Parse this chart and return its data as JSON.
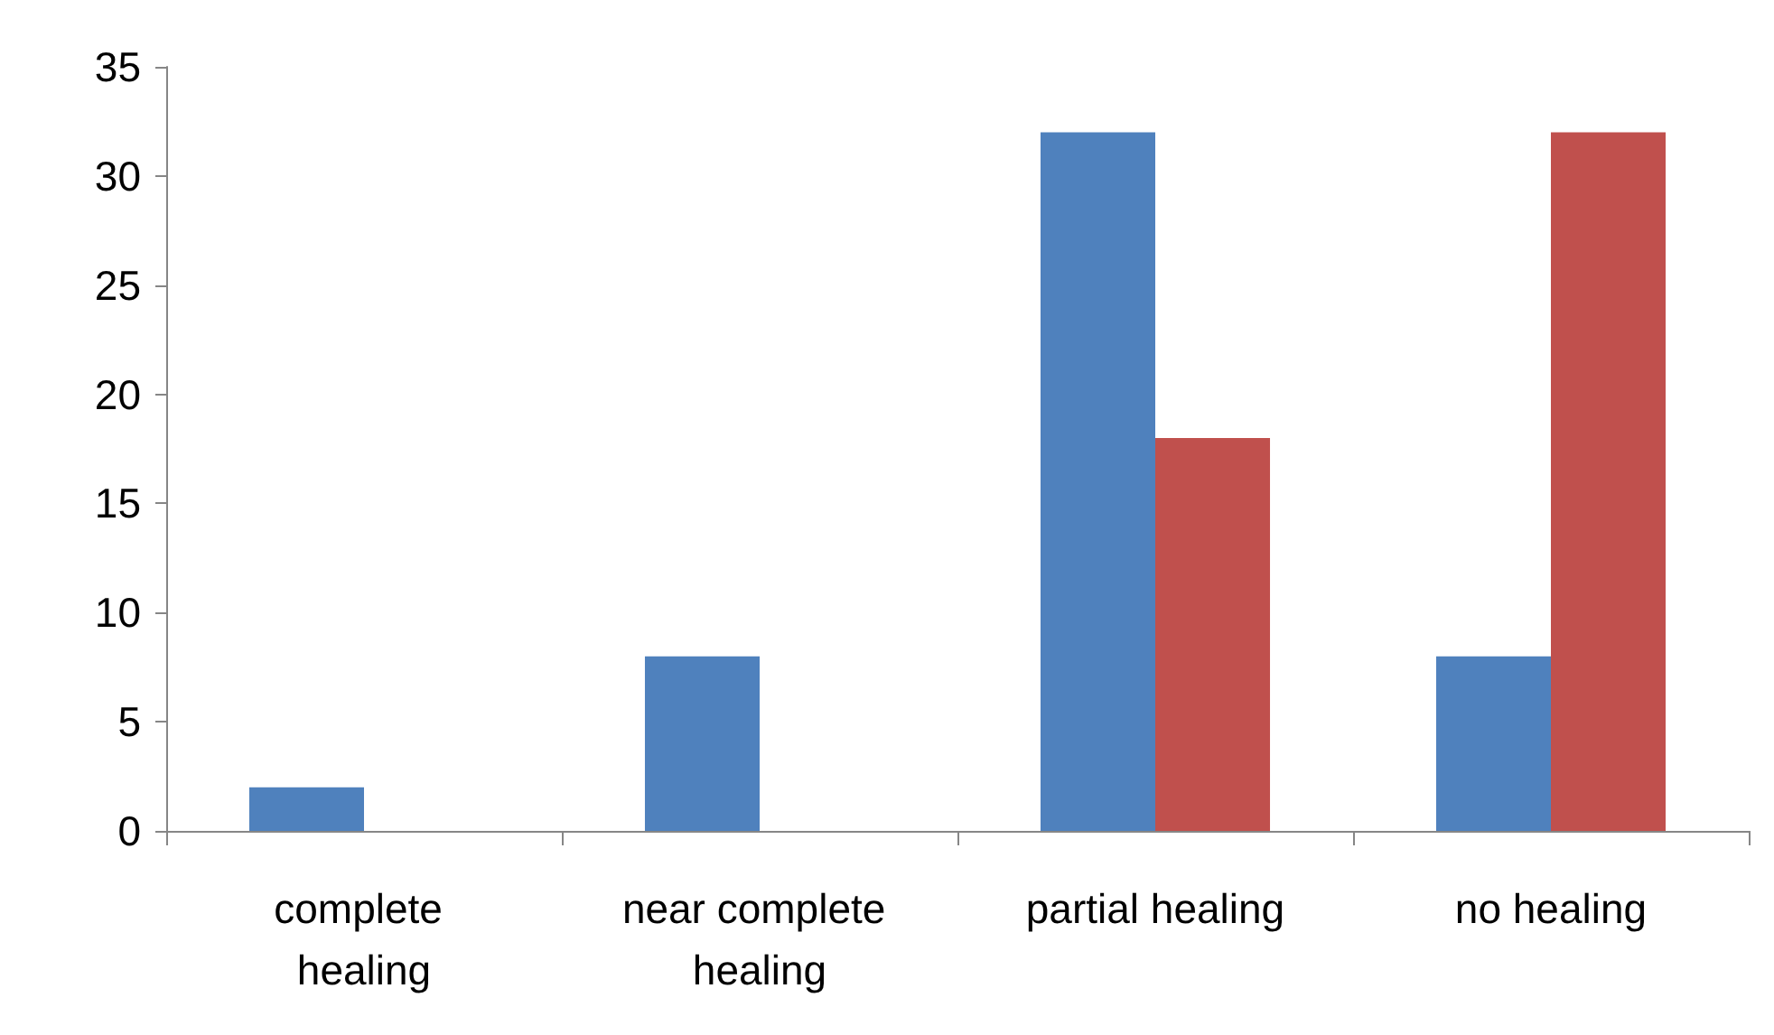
{
  "chart_data": {
    "type": "bar",
    "categories": [
      "complete healing",
      "near complete healing",
      "partial healing",
      "no healing"
    ],
    "series": [
      {
        "color": "#4f81bd",
        "values": [
          2,
          8,
          32,
          8
        ]
      },
      {
        "color": "#c0504d",
        "values": [
          0,
          0,
          18,
          32
        ]
      }
    ],
    "ylim": [
      0,
      35
    ],
    "yticks": [
      0,
      5,
      10,
      15,
      20,
      25,
      30,
      35
    ]
  }
}
